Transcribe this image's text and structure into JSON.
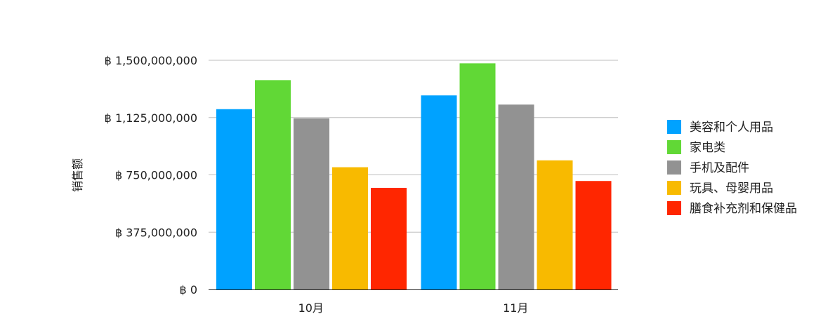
{
  "chart_data": {
    "type": "bar",
    "title": "",
    "xlabel": "",
    "ylabel": "销售额",
    "ylim": [
      0,
      1500000000
    ],
    "yticks": [
      0,
      375000000,
      750000000,
      1125000000,
      1500000000
    ],
    "ytick_labels": [
      "฿ 0",
      "฿ 375,000,000",
      "฿ 750,000,000",
      "฿ 1,125,000,000",
      "฿ 1,500,000,000"
    ],
    "grid": true,
    "legend_position": "right",
    "categories": [
      "10月",
      "11月"
    ],
    "series": [
      {
        "name": "美容和个人用品",
        "color": "#00a2ff",
        "values": [
          1180000000,
          1270000000
        ]
      },
      {
        "name": "家电类",
        "color": "#61d836",
        "values": [
          1370000000,
          1480000000
        ]
      },
      {
        "name": "手机及配件",
        "color": "#929292",
        "values": [
          1120000000,
          1210000000
        ]
      },
      {
        "name": "玩具、母婴用品",
        "color": "#f8ba00",
        "values": [
          800000000,
          845000000
        ]
      },
      {
        "name": "膳食补充剂和保健品",
        "color": "#ff2600",
        "values": [
          665000000,
          710000000
        ]
      }
    ]
  }
}
